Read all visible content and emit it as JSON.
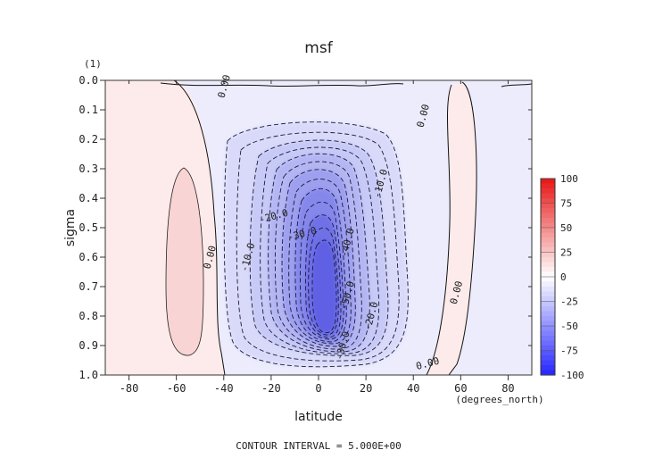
{
  "chart_data": {
    "type": "contour",
    "title": "msf",
    "variable_units_label": "(1)",
    "xlabel": "latitude",
    "ylabel": "sigma",
    "x_units_label": "(degrees_north)",
    "xlim": [
      -90,
      90
    ],
    "ylim": [
      1.0,
      0.0
    ],
    "x_ticks": [
      -80,
      -60,
      -40,
      -20,
      0,
      20,
      40,
      60,
      80
    ],
    "x_tick_labels": [
      "-80",
      "-60",
      "-40",
      "-20",
      "0",
      "20",
      "40",
      "60",
      "80"
    ],
    "y_ticks": [
      0.0,
      0.1,
      0.2,
      0.3,
      0.4,
      0.5,
      0.6,
      0.7,
      0.8,
      0.9,
      1.0
    ],
    "y_tick_labels": [
      "0.0",
      "0.1",
      "0.2",
      "0.3",
      "0.4",
      "0.5",
      "0.6",
      "0.7",
      "0.8",
      "0.9",
      "1.0"
    ],
    "colorbar": {
      "labels": [
        "100",
        "75",
        "50",
        "25",
        "0",
        "-25",
        "-50",
        "-75",
        "-100"
      ],
      "range": [
        -100,
        100
      ],
      "colors": {
        "negative": "#2a2aff",
        "zero": "#ffffff",
        "positive": "#e81b1b"
      }
    },
    "contour_interval_text": "CONTOUR INTERVAL = 5.000E+00",
    "contour_labels": [
      {
        "text": "0.00",
        "lat": -46,
        "sigma": 0.6
      },
      {
        "text": "0.00",
        "lat": -40,
        "sigma": 0.02
      },
      {
        "text": "0.00",
        "lat": 44,
        "sigma": 0.12
      },
      {
        "text": "0.00",
        "lat": 58,
        "sigma": 0.72
      },
      {
        "text": "0.00",
        "lat": 46,
        "sigma": 0.96
      },
      {
        "text": "-10.0",
        "lat": -30,
        "sigma": 0.6
      },
      {
        "text": "-10.0",
        "lat": 26,
        "sigma": 0.35
      },
      {
        "text": "-20.0",
        "lat": -19,
        "sigma": 0.46
      },
      {
        "text": "-20.0",
        "lat": 22,
        "sigma": 0.8
      },
      {
        "text": "-30.0",
        "lat": -7,
        "sigma": 0.52
      },
      {
        "text": "-30.0",
        "lat": 10,
        "sigma": 0.9
      },
      {
        "text": "-40.0",
        "lat": 12,
        "sigma": 0.55
      },
      {
        "text": "-50.0",
        "lat": 12,
        "sigma": 0.73
      }
    ]
  }
}
